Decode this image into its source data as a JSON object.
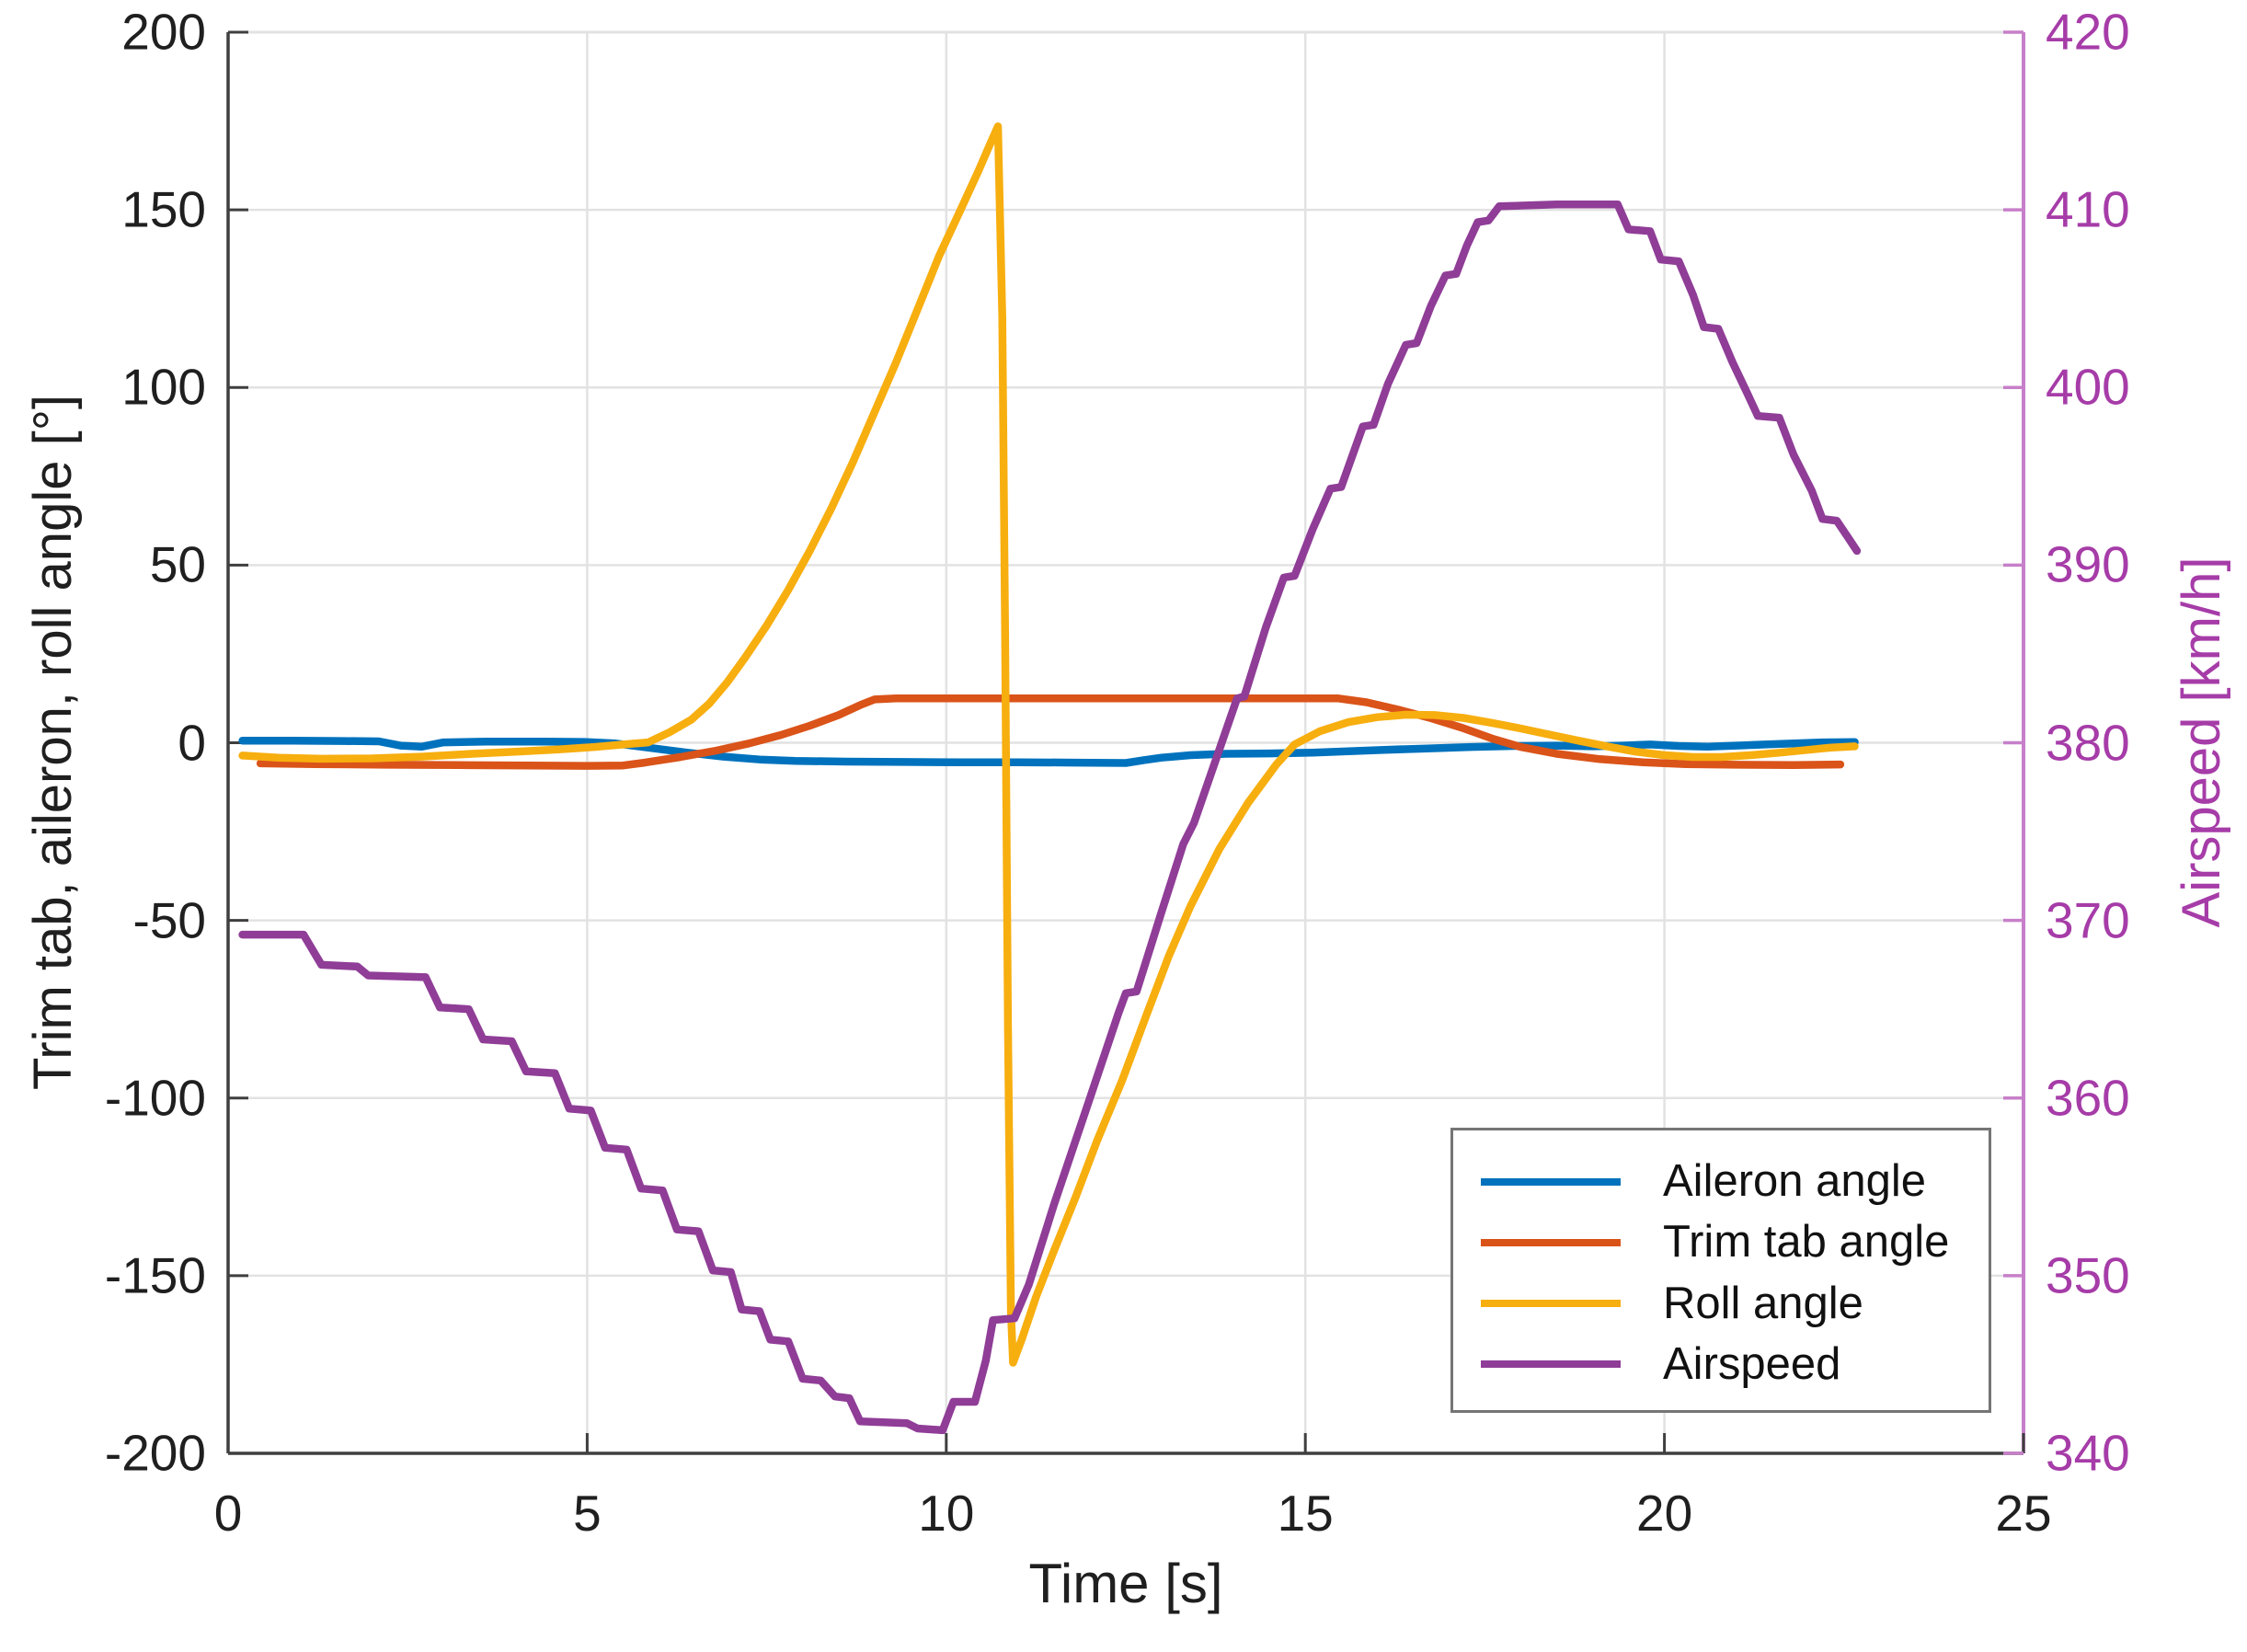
{
  "chart_data": {
    "type": "line",
    "title": "",
    "xlabel": "Time [s]",
    "x_range": [
      0,
      25
    ],
    "x_ticks": [
      "0",
      "5",
      "10",
      "15",
      "20",
      "25"
    ],
    "grid": true,
    "left_axis": {
      "label": "Trim tab, aileron, roll angle [°]",
      "range": [
        -200,
        200
      ],
      "ticks": [
        "200",
        "150",
        "100",
        "50",
        "0",
        "-50",
        "-100",
        "-150",
        "-200"
      ],
      "color": "#1f1f1f",
      "axis_line_color": "#3f3f3f"
    },
    "right_axis": {
      "label": "Airspeed [km/h]",
      "range": [
        340,
        420
      ],
      "ticks": [
        "420",
        "410",
        "400",
        "390",
        "380",
        "370",
        "360",
        "350",
        "340"
      ],
      "color": "#a63ca8",
      "axis_line_color": "#c77fc9"
    },
    "legend": {
      "position": "inside-lower-right",
      "entries": [
        "Aileron angle",
        "Trim tab angle",
        "Roll angle",
        "Airspeed"
      ]
    },
    "series": [
      {
        "name": "Aileron angle",
        "color": "#0072bd",
        "axis": "left",
        "points": [
          [
            0.2,
            0.6
          ],
          [
            0.9,
            0.6
          ],
          [
            1.6,
            0.5
          ],
          [
            2.1,
            0.4
          ],
          [
            2.4,
            -0.8
          ],
          [
            2.7,
            -1.1
          ],
          [
            3.0,
            0.1
          ],
          [
            3.6,
            0.3
          ],
          [
            4.4,
            0.3
          ],
          [
            5.0,
            0.2
          ],
          [
            5.4,
            -0.2
          ],
          [
            5.9,
            -1.5
          ],
          [
            6.4,
            -2.8
          ],
          [
            6.9,
            -3.9
          ],
          [
            7.4,
            -4.7
          ],
          [
            7.9,
            -5.1
          ],
          [
            8.6,
            -5.3
          ],
          [
            9.4,
            -5.4
          ],
          [
            10.2,
            -5.5
          ],
          [
            11.0,
            -5.5
          ],
          [
            11.8,
            -5.6
          ],
          [
            12.5,
            -5.7
          ],
          [
            12.75,
            -4.9
          ],
          [
            13.0,
            -4.2
          ],
          [
            13.4,
            -3.5
          ],
          [
            13.9,
            -3.1
          ],
          [
            14.5,
            -3.0
          ],
          [
            15.1,
            -2.8
          ],
          [
            15.6,
            -2.4
          ],
          [
            16.1,
            -2.0
          ],
          [
            16.7,
            -1.6
          ],
          [
            17.3,
            -1.2
          ],
          [
            17.9,
            -0.9
          ],
          [
            18.5,
            -0.8
          ],
          [
            19.0,
            -1.0
          ],
          [
            19.4,
            -0.8
          ],
          [
            19.8,
            -0.5
          ],
          [
            20.2,
            -0.9
          ],
          [
            20.6,
            -1.1
          ],
          [
            21.0,
            -0.8
          ],
          [
            21.4,
            -0.5
          ],
          [
            21.8,
            -0.2
          ],
          [
            22.2,
            0.1
          ],
          [
            22.65,
            0.2
          ]
        ]
      },
      {
        "name": "Trim tab angle",
        "color": "#da5319",
        "axis": "left",
        "points": [
          [
            0.45,
            -5.8
          ],
          [
            1.2,
            -6.0
          ],
          [
            2.2,
            -6.2
          ],
          [
            3.2,
            -6.3
          ],
          [
            4.2,
            -6.4
          ],
          [
            5.0,
            -6.5
          ],
          [
            5.5,
            -6.4
          ],
          [
            5.8,
            -5.6
          ],
          [
            6.3,
            -4.0
          ],
          [
            6.8,
            -2.2
          ],
          [
            7.25,
            -0.2
          ],
          [
            7.7,
            2.2
          ],
          [
            8.1,
            4.8
          ],
          [
            8.5,
            7.8
          ],
          [
            8.8,
            10.6
          ],
          [
            9.0,
            12.2
          ],
          [
            9.3,
            12.5
          ],
          [
            10.5,
            12.5
          ],
          [
            12.0,
            12.5
          ],
          [
            13.5,
            12.5
          ],
          [
            15.45,
            12.5
          ],
          [
            15.85,
            11.4
          ],
          [
            16.3,
            9.3
          ],
          [
            16.75,
            6.9
          ],
          [
            17.2,
            4.1
          ],
          [
            17.6,
            1.2
          ],
          [
            18.0,
            -1.2
          ],
          [
            18.5,
            -3.1
          ],
          [
            19.1,
            -4.6
          ],
          [
            19.7,
            -5.5
          ],
          [
            20.3,
            -6.0
          ],
          [
            21.0,
            -6.2
          ],
          [
            21.8,
            -6.3
          ],
          [
            22.45,
            -6.1
          ]
        ]
      },
      {
        "name": "Roll angle",
        "color": "#f7ae0f",
        "axis": "left",
        "points": [
          [
            0.2,
            -3.6
          ],
          [
            0.7,
            -4.2
          ],
          [
            1.3,
            -4.5
          ],
          [
            2.0,
            -4.4
          ],
          [
            2.7,
            -3.9
          ],
          [
            3.4,
            -3.1
          ],
          [
            4.0,
            -2.5
          ],
          [
            4.6,
            -1.9
          ],
          [
            5.1,
            -1.2
          ],
          [
            5.5,
            -0.5
          ],
          [
            5.85,
            0.1
          ],
          [
            6.15,
            3.0
          ],
          [
            6.45,
            6.5
          ],
          [
            6.7,
            11
          ],
          [
            6.95,
            17
          ],
          [
            7.2,
            24
          ],
          [
            7.5,
            33
          ],
          [
            7.8,
            43
          ],
          [
            8.1,
            54
          ],
          [
            8.4,
            66
          ],
          [
            8.7,
            79
          ],
          [
            9.0,
            93
          ],
          [
            9.3,
            107
          ],
          [
            9.6,
            122
          ],
          [
            9.9,
            137
          ],
          [
            10.2,
            150
          ],
          [
            10.45,
            161
          ],
          [
            10.6,
            168
          ],
          [
            10.72,
            173.5
          ],
          [
            10.78,
            120
          ],
          [
            10.82,
            30
          ],
          [
            10.86,
            -80
          ],
          [
            10.9,
            -160
          ],
          [
            10.93,
            -174.5
          ],
          [
            11.05,
            -168
          ],
          [
            11.25,
            -156
          ],
          [
            11.5,
            -143
          ],
          [
            11.8,
            -128
          ],
          [
            12.1,
            -112
          ],
          [
            12.45,
            -95
          ],
          [
            12.8,
            -76
          ],
          [
            13.1,
            -60
          ],
          [
            13.4,
            -46
          ],
          [
            13.8,
            -30
          ],
          [
            14.2,
            -17
          ],
          [
            14.6,
            -6
          ],
          [
            14.85,
            -0.5
          ],
          [
            15.2,
            3.2
          ],
          [
            15.6,
            5.8
          ],
          [
            16.0,
            7.2
          ],
          [
            16.4,
            7.9
          ],
          [
            16.8,
            7.8
          ],
          [
            17.2,
            7.0
          ],
          [
            17.6,
            5.6
          ],
          [
            18.0,
            4.0
          ],
          [
            18.4,
            2.3
          ],
          [
            18.8,
            0.6
          ],
          [
            19.2,
            -1.0
          ],
          [
            19.6,
            -2.5
          ],
          [
            20.0,
            -3.5
          ],
          [
            20.4,
            -4.0
          ],
          [
            20.8,
            -4.0
          ],
          [
            21.2,
            -3.5
          ],
          [
            21.6,
            -2.8
          ],
          [
            22.0,
            -2.0
          ],
          [
            22.3,
            -1.4
          ],
          [
            22.65,
            -1.0
          ]
        ]
      },
      {
        "name": "Airspeed",
        "color": "#8f3d97",
        "axis": "right",
        "points": [
          [
            0.2,
            369.2
          ],
          [
            1.05,
            369.2
          ],
          [
            1.3,
            367.5
          ],
          [
            1.8,
            367.4
          ],
          [
            1.95,
            366.9
          ],
          [
            2.75,
            366.8
          ],
          [
            2.95,
            365.1
          ],
          [
            3.35,
            365.0
          ],
          [
            3.55,
            363.3
          ],
          [
            3.95,
            363.2
          ],
          [
            4.15,
            361.5
          ],
          [
            4.55,
            361.4
          ],
          [
            4.75,
            359.4
          ],
          [
            5.05,
            359.3
          ],
          [
            5.25,
            357.2
          ],
          [
            5.55,
            357.1
          ],
          [
            5.75,
            354.9
          ],
          [
            6.05,
            354.8
          ],
          [
            6.25,
            352.6
          ],
          [
            6.55,
            352.5
          ],
          [
            6.75,
            350.3
          ],
          [
            7.0,
            350.2
          ],
          [
            7.15,
            348.1
          ],
          [
            7.4,
            348.0
          ],
          [
            7.55,
            346.4
          ],
          [
            7.8,
            346.3
          ],
          [
            8.0,
            344.2
          ],
          [
            8.25,
            344.1
          ],
          [
            8.45,
            343.2
          ],
          [
            8.65,
            343.1
          ],
          [
            8.8,
            341.8
          ],
          [
            9.45,
            341.7
          ],
          [
            9.6,
            341.4
          ],
          [
            9.95,
            341.3
          ],
          [
            10.1,
            342.9
          ],
          [
            10.4,
            342.9
          ],
          [
            10.55,
            345.2
          ],
          [
            10.65,
            347.5
          ],
          [
            10.95,
            347.6
          ],
          [
            11.15,
            349.5
          ],
          [
            11.5,
            354.0
          ],
          [
            12.0,
            360.0
          ],
          [
            12.4,
            364.8
          ],
          [
            12.5,
            365.9
          ],
          [
            12.65,
            366.0
          ],
          [
            13.0,
            370.5
          ],
          [
            13.3,
            374.3
          ],
          [
            13.45,
            375.5
          ],
          [
            13.75,
            379.0
          ],
          [
            14.05,
            382.5
          ],
          [
            14.15,
            382.6
          ],
          [
            14.45,
            386.5
          ],
          [
            14.7,
            389.3
          ],
          [
            14.85,
            389.4
          ],
          [
            15.1,
            392.0
          ],
          [
            15.35,
            394.3
          ],
          [
            15.5,
            394.4
          ],
          [
            15.8,
            397.8
          ],
          [
            15.95,
            397.9
          ],
          [
            16.15,
            400.2
          ],
          [
            16.4,
            402.4
          ],
          [
            16.55,
            402.5
          ],
          [
            16.75,
            404.6
          ],
          [
            16.95,
            406.3
          ],
          [
            17.1,
            406.4
          ],
          [
            17.25,
            408.0
          ],
          [
            17.4,
            409.3
          ],
          [
            17.55,
            409.4
          ],
          [
            17.7,
            410.2
          ],
          [
            18.5,
            410.3
          ],
          [
            19.35,
            410.3
          ],
          [
            19.5,
            408.9
          ],
          [
            19.8,
            408.8
          ],
          [
            19.95,
            407.2
          ],
          [
            20.2,
            407.1
          ],
          [
            20.4,
            405.2
          ],
          [
            20.55,
            403.4
          ],
          [
            20.75,
            403.3
          ],
          [
            20.95,
            401.4
          ],
          [
            21.15,
            399.7
          ],
          [
            21.3,
            398.4
          ],
          [
            21.6,
            398.3
          ],
          [
            21.8,
            396.2
          ],
          [
            22.05,
            394.2
          ],
          [
            22.2,
            392.6
          ],
          [
            22.4,
            392.5
          ],
          [
            22.55,
            391.6
          ],
          [
            22.68,
            390.8
          ]
        ]
      }
    ]
  }
}
